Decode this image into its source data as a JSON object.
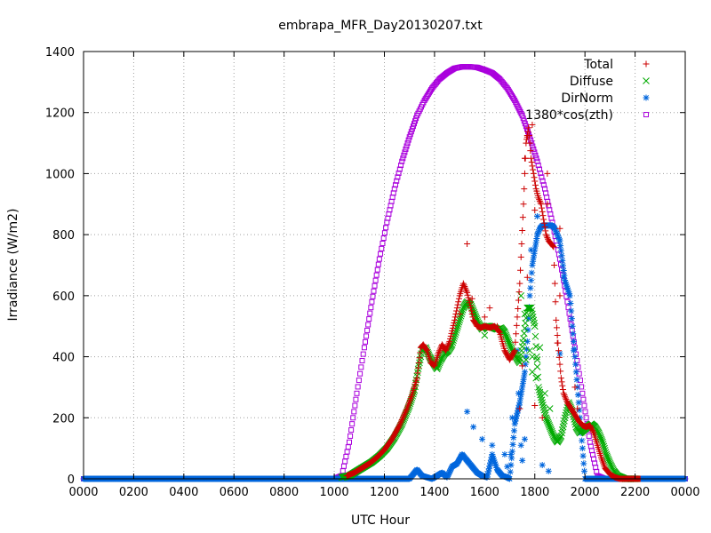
{
  "chart_data": {
    "type": "scatter",
    "title": "embrapa_MFR_Day20130207.txt",
    "xlabel": "UTC Hour",
    "ylabel": "Irradiance (W/m2)",
    "xlim": [
      0,
      24
    ],
    "ylim": [
      0,
      1400
    ],
    "grid": true,
    "legend_position": "top-right",
    "x_ticks": [
      {
        "value": 0,
        "label": "0000"
      },
      {
        "value": 2,
        "label": "0200"
      },
      {
        "value": 4,
        "label": "0400"
      },
      {
        "value": 6,
        "label": "0600"
      },
      {
        "value": 8,
        "label": "0800"
      },
      {
        "value": 10,
        "label": "1000"
      },
      {
        "value": 12,
        "label": "1200"
      },
      {
        "value": 14,
        "label": "1400"
      },
      {
        "value": 16,
        "label": "1600"
      },
      {
        "value": 18,
        "label": "1800"
      },
      {
        "value": 20,
        "label": "2000"
      },
      {
        "value": 22,
        "label": "2200"
      },
      {
        "value": 24,
        "label": "0000"
      }
    ],
    "y_ticks": [
      {
        "value": 0,
        "label": "0"
      },
      {
        "value": 200,
        "label": "200"
      },
      {
        "value": 400,
        "label": "400"
      },
      {
        "value": 600,
        "label": "600"
      },
      {
        "value": 800,
        "label": "800"
      },
      {
        "value": 1000,
        "label": "1000"
      },
      {
        "value": 1200,
        "label": "1200"
      },
      {
        "value": 1400,
        "label": "1400"
      }
    ],
    "series": [
      {
        "name": "Total",
        "marker": "plus",
        "color": "#cc0000",
        "x": [
          10.5,
          10.8,
          11.1,
          11.4,
          11.7,
          12.0,
          12.3,
          12.6,
          12.9,
          13.1,
          13.3,
          13.45,
          13.55,
          13.7,
          13.85,
          14.0,
          14.15,
          14.3,
          14.45,
          14.6,
          14.8,
          15.0,
          15.15,
          15.3,
          15.45,
          15.55,
          15.7,
          15.85,
          16.0,
          16.2,
          16.4,
          16.6,
          16.8,
          17.0,
          17.2,
          17.4,
          17.55,
          17.65,
          17.75,
          17.85,
          17.95,
          18.05,
          18.15,
          18.25,
          18.35,
          18.45,
          18.55,
          18.65,
          18.75,
          18.85,
          18.95,
          19.05,
          19.15,
          19.3,
          19.45,
          19.6,
          19.75,
          19.9,
          20.05,
          20.2,
          20.35,
          20.5,
          20.65,
          20.8,
          21.0,
          21.2,
          21.4,
          21.6,
          21.8,
          22.0,
          22.2
        ],
        "y": [
          10,
          20,
          35,
          50,
          70,
          95,
          130,
          175,
          230,
          275,
          330,
          430,
          440,
          420,
          380,
          370,
          410,
          440,
          420,
          450,
          520,
          600,
          640,
          610,
          560,
          520,
          500,
          495,
          500,
          495,
          500,
          480,
          420,
          390,
          420,
          640,
          900,
          1100,
          1150,
          1050,
          1000,
          950,
          920,
          900,
          850,
          800,
          780,
          770,
          760,
          520,
          420,
          330,
          280,
          250,
          230,
          210,
          190,
          175,
          170,
          175,
          150,
          110,
          70,
          35,
          15,
          5,
          0,
          0,
          0,
          0,
          0
        ],
        "extra": [
          [
            15.3,
            770
          ],
          [
            16.2,
            560
          ],
          [
            16.5,
            500
          ],
          [
            17.9,
            1160
          ],
          [
            17.7,
            1120
          ],
          [
            18.0,
            880
          ],
          [
            18.5,
            900
          ],
          [
            19.0,
            820
          ],
          [
            19.7,
            230
          ],
          [
            17.4,
            230
          ],
          [
            17.7,
            660
          ],
          [
            18.3,
            200
          ],
          [
            18.9,
            445
          ],
          [
            19.0,
            600
          ],
          [
            19.6,
            300
          ],
          [
            16.0,
            530
          ],
          [
            15.5,
            590
          ],
          [
            15.0,
            540
          ],
          [
            17.5,
            370
          ],
          [
            18.0,
            240
          ],
          [
            18.5,
            1000
          ],
          [
            17.6,
            1050
          ]
        ]
      },
      {
        "name": "Diffuse",
        "marker": "x",
        "color": "#00aa00",
        "x": [
          10.3,
          10.6,
          10.9,
          11.2,
          11.5,
          11.8,
          12.1,
          12.4,
          12.7,
          13.0,
          13.2,
          13.35,
          13.5,
          13.65,
          13.8,
          13.95,
          14.1,
          14.25,
          14.4,
          14.55,
          14.7,
          14.85,
          15.0,
          15.15,
          15.3,
          15.45,
          15.6,
          15.75,
          15.9,
          16.05,
          16.2,
          16.35,
          16.5,
          16.65,
          16.8,
          16.95,
          17.1,
          17.25,
          17.4,
          17.55,
          17.7,
          17.85,
          18.0,
          18.15,
          18.3,
          18.45,
          18.6,
          18.75,
          18.9,
          19.05,
          19.2,
          19.35,
          19.5,
          19.65,
          19.8,
          19.95,
          20.1,
          20.25,
          20.4,
          20.55,
          20.7,
          20.85,
          21.0,
          21.15,
          21.3,
          21.45,
          21.6,
          21.75,
          21.9,
          22.05
        ],
        "y": [
          5,
          10,
          25,
          40,
          55,
          75,
          100,
          135,
          180,
          240,
          290,
          360,
          420,
          430,
          400,
          380,
          360,
          390,
          410,
          420,
          440,
          480,
          520,
          560,
          580,
          570,
          540,
          510,
          490,
          500,
          500,
          495,
          490,
          495,
          480,
          450,
          420,
          400,
          380,
          460,
          560,
          560,
          500,
          300,
          250,
          200,
          170,
          140,
          120,
          140,
          200,
          250,
          220,
          170,
          150,
          160,
          170,
          180,
          170,
          150,
          120,
          80,
          50,
          25,
          10,
          5,
          0,
          0,
          0,
          0
        ],
        "extra": [
          [
            17.45,
            600
          ],
          [
            17.6,
            540
          ],
          [
            17.9,
            400
          ],
          [
            18.05,
            330
          ],
          [
            18.2,
            430
          ],
          [
            18.4,
            280
          ],
          [
            18.6,
            230
          ],
          [
            17.9,
            350
          ],
          [
            17.8,
            420
          ],
          [
            16.0,
            470
          ],
          [
            17.65,
            390
          ],
          [
            18.1,
            390
          ]
        ]
      },
      {
        "name": "DirNorm",
        "marker": "star",
        "color": "#0066dd",
        "x": [
          0,
          1,
          2,
          3,
          4,
          5,
          6,
          7,
          8,
          9,
          10,
          10.5,
          11,
          11.5,
          12,
          12.5,
          13,
          13.3,
          13.5,
          13.9,
          14.3,
          14.5,
          14.7,
          14.9,
          15.1,
          15.3,
          15.5,
          15.7,
          15.9,
          16.1,
          16.3,
          16.5,
          16.7,
          16.9,
          17.0,
          17.2,
          17.4,
          17.5,
          17.6,
          17.7,
          17.8,
          17.9,
          18.0,
          18.1,
          18.2,
          18.3,
          18.4,
          18.5,
          18.6,
          18.7,
          18.8,
          18.9,
          19.0,
          19.2,
          19.4,
          19.6,
          19.8,
          20,
          20.5,
          21,
          21.5,
          22,
          22.5,
          23,
          24
        ],
        "y": [
          0,
          0,
          0,
          0,
          0,
          0,
          0,
          0,
          0,
          0,
          0,
          0,
          0,
          0,
          0,
          0,
          0,
          30,
          10,
          0,
          20,
          5,
          40,
          50,
          80,
          60,
          40,
          20,
          10,
          5,
          80,
          30,
          10,
          5,
          0,
          180,
          250,
          300,
          350,
          450,
          600,
          700,
          750,
          800,
          820,
          830,
          830,
          830,
          830,
          830,
          820,
          800,
          780,
          650,
          600,
          400,
          200,
          0,
          0,
          0,
          0,
          0,
          0,
          0,
          0
        ],
        "extra": [
          [
            15.3,
            220
          ],
          [
            15.55,
            170
          ],
          [
            16.3,
            110
          ],
          [
            17.05,
            80
          ],
          [
            17.1,
            200
          ],
          [
            17.3,
            420
          ],
          [
            17.35,
            280
          ],
          [
            17.45,
            110
          ],
          [
            17.6,
            130
          ],
          [
            17.85,
            750
          ],
          [
            18.1,
            860
          ],
          [
            18.55,
            25
          ],
          [
            19.15,
            660
          ],
          [
            19.0,
            410
          ],
          [
            19.55,
            420
          ],
          [
            16.8,
            80
          ],
          [
            16.9,
            40
          ],
          [
            15.9,
            130
          ],
          [
            17.5,
            60
          ],
          [
            18.3,
            45
          ]
        ]
      },
      {
        "name": "1380*cos(zth)",
        "marker": "square",
        "color": "#aa00dd",
        "x": [
          0,
          0.5,
          1,
          1.5,
          2,
          2.5,
          3,
          3.5,
          4,
          4.5,
          5,
          5.5,
          6,
          6.5,
          7,
          7.5,
          8,
          8.5,
          9,
          9.5,
          10.0,
          10.3,
          10.6,
          10.9,
          11.2,
          11.5,
          11.8,
          12.1,
          12.4,
          12.7,
          13.0,
          13.3,
          13.6,
          13.9,
          14.2,
          14.5,
          14.8,
          15.1,
          15.4,
          15.7,
          16.0,
          16.3,
          16.6,
          16.9,
          17.2,
          17.5,
          17.8,
          18.1,
          18.4,
          18.7,
          19.0,
          19.3,
          19.6,
          19.9,
          20.2,
          20.5,
          20.8,
          21.1,
          21.4,
          21.7,
          22.0,
          22.3,
          22.5,
          23,
          23.5,
          24
        ],
        "y": [
          0,
          0,
          0,
          0,
          0,
          0,
          0,
          0,
          0,
          0,
          0,
          0,
          0,
          0,
          0,
          0,
          0,
          0,
          0,
          0,
          0,
          10,
          120,
          280,
          430,
          580,
          720,
          840,
          950,
          1040,
          1120,
          1190,
          1240,
          1280,
          1310,
          1330,
          1345,
          1350,
          1350,
          1348,
          1340,
          1330,
          1310,
          1280,
          1240,
          1190,
          1120,
          1040,
          950,
          840,
          720,
          580,
          430,
          280,
          120,
          10,
          0,
          0,
          0,
          0,
          0,
          0,
          0,
          0,
          0,
          0
        ]
      }
    ]
  }
}
